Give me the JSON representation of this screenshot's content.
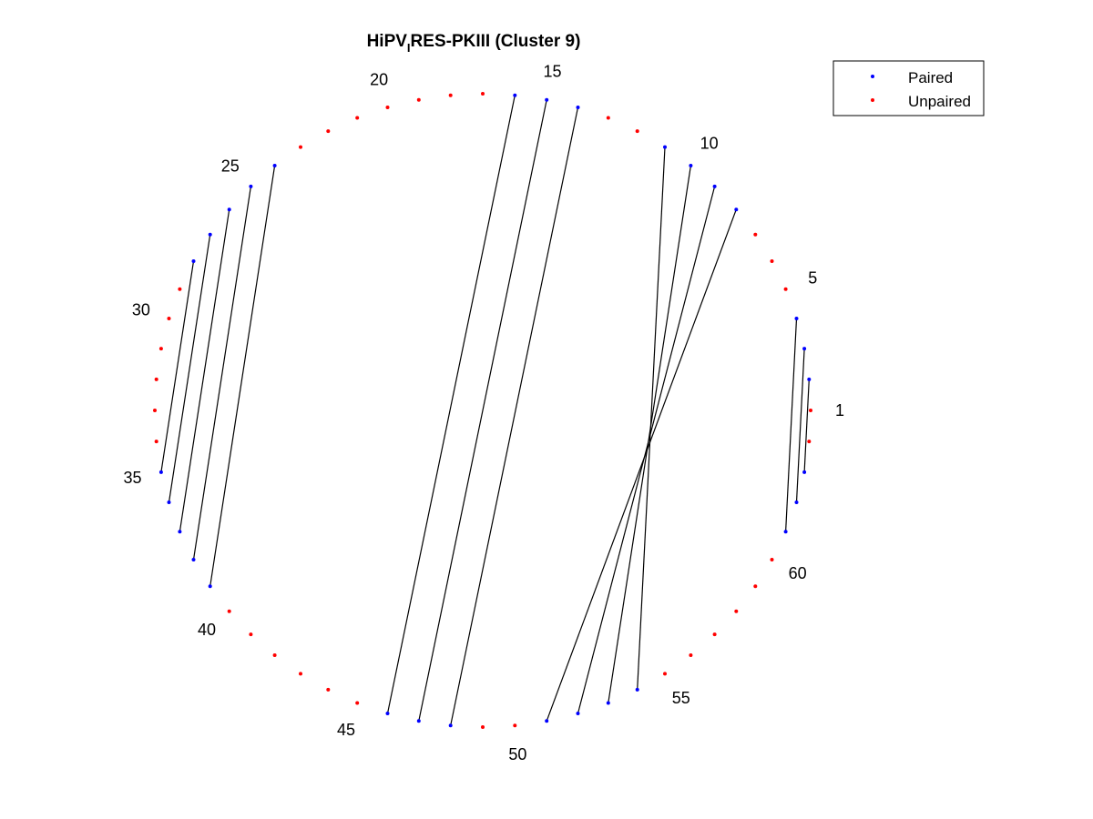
{
  "title": {
    "main": "HiPV",
    "subscript": "I",
    "rest": "RES-PKIII (Cluster 9)"
  },
  "colors": {
    "paired": "#0000ff",
    "unpaired": "#ff0000",
    "arc": "#000000"
  },
  "legend": {
    "position": "top-right",
    "items": [
      {
        "label": "Paired",
        "color": "#0000ff"
      },
      {
        "label": "Unpaired",
        "color": "#ff0000"
      }
    ]
  },
  "chart_data": {
    "type": "circular-arc-diagram",
    "node_count": 64,
    "start_node": 1,
    "direction": "counter-clockwise",
    "labeled_nodes": [
      "1",
      "5",
      "10",
      "15",
      "20",
      "25",
      "30",
      "35",
      "40",
      "45",
      "50",
      "55",
      "60"
    ],
    "pairs": [
      [
        2,
        63
      ],
      [
        3,
        62
      ],
      [
        4,
        61
      ],
      [
        8,
        51
      ],
      [
        9,
        52
      ],
      [
        10,
        53
      ],
      [
        11,
        54
      ],
      [
        14,
        48
      ],
      [
        15,
        47
      ],
      [
        16,
        46
      ],
      [
        24,
        39
      ],
      [
        25,
        38
      ],
      [
        26,
        37
      ],
      [
        27,
        36
      ],
      [
        28,
        35
      ]
    ]
  }
}
